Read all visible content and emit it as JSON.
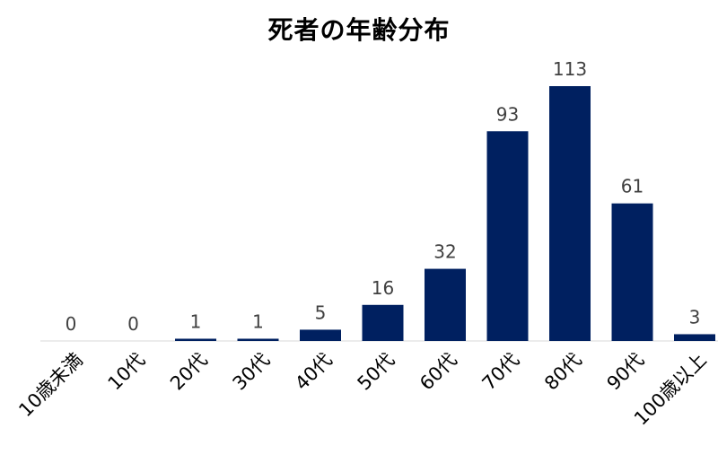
{
  "chart_data": {
    "type": "bar",
    "title": "死者の年齢分布",
    "categories": [
      "10歳未満",
      "10代",
      "20代",
      "30代",
      "40代",
      "50代",
      "60代",
      "70代",
      "80代",
      "90代",
      "100歳以上"
    ],
    "values": [
      0,
      0,
      1,
      1,
      5,
      16,
      32,
      93,
      113,
      61,
      3
    ],
    "value_labels": [
      "0",
      "0",
      "1",
      "1",
      "5",
      "16",
      "32",
      "93",
      "113",
      "61",
      "3"
    ],
    "xlabel": "",
    "ylabel": "",
    "ylim": [
      0,
      113
    ],
    "grid": false,
    "legend": "none",
    "bar_color": "#002060",
    "axis_color": "#d9d9d9"
  }
}
